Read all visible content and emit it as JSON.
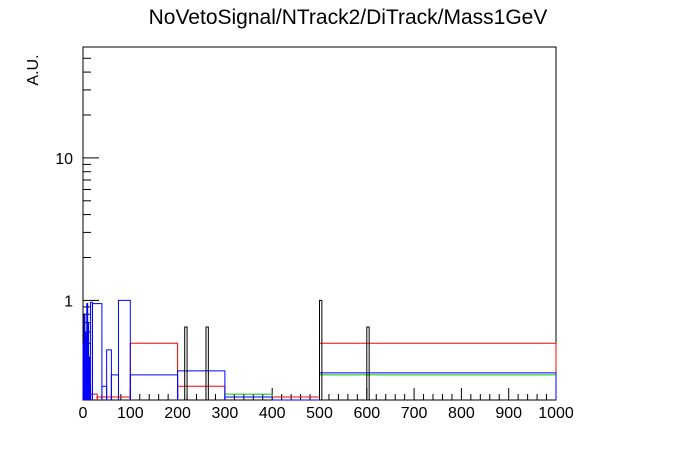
{
  "chart_data": {
    "type": "histogram",
    "title": "NoVetoSignal/NTrack2/DiTrack/Mass1GeV",
    "xlabel": "",
    "ylabel": "A.U.",
    "xlim": [
      0,
      1000
    ],
    "ylim": [
      0.2,
      60
    ],
    "yscale": "log",
    "grid": false,
    "legend": "none",
    "x_ticks": [
      0,
      100,
      200,
      300,
      400,
      500,
      600,
      700,
      800,
      900,
      1000
    ],
    "x_tick_labels": [
      "0",
      "100",
      "200",
      "300",
      "400",
      "500",
      "600",
      "700",
      "800",
      "900",
      "1000"
    ],
    "y_ticks": [
      1,
      10
    ],
    "y_tick_labels": [
      "1",
      "10"
    ],
    "series": [
      {
        "color": "#ff0000",
        "bins": [
          [
            0,
            5,
            0.35
          ],
          [
            5,
            10,
            0.6
          ],
          [
            10,
            20,
            0.22
          ],
          [
            20,
            30,
            0.22
          ],
          [
            30,
            100,
            0.21
          ],
          [
            100,
            200,
            0.5
          ],
          [
            200,
            300,
            0.25
          ],
          [
            300,
            400,
            0.21
          ],
          [
            400,
            500,
            0.21
          ],
          [
            500,
            1000,
            0.5
          ]
        ]
      },
      {
        "color": "#00cc00",
        "bins": [
          [
            300,
            400,
            0.22
          ],
          [
            500,
            1000,
            0.3
          ]
        ]
      },
      {
        "color": "#0000ff",
        "bins": [
          [
            0,
            2,
            0.5
          ],
          [
            2,
            4,
            0.8
          ],
          [
            4,
            6,
            0.35
          ],
          [
            6,
            8,
            0.6
          ],
          [
            8,
            10,
            0.95
          ],
          [
            10,
            12,
            0.7
          ],
          [
            12,
            14,
            0.4
          ],
          [
            14,
            16,
            0.25
          ],
          [
            16,
            20,
            0.97
          ],
          [
            20,
            40,
            0.95
          ],
          [
            40,
            50,
            0.25
          ],
          [
            50,
            60,
            0.45
          ],
          [
            60,
            75,
            0.3
          ],
          [
            75,
            100,
            1.0
          ],
          [
            100,
            200,
            0.3
          ],
          [
            200,
            300,
            0.32
          ],
          [
            300,
            400,
            0.21
          ],
          [
            400,
            500,
            0.2
          ],
          [
            500,
            1000,
            0.31
          ]
        ]
      },
      {
        "color": "#000000",
        "bins": [
          [
            215,
            220,
            0.65
          ],
          [
            260,
            265,
            0.65
          ],
          [
            500,
            505,
            1.0
          ],
          [
            600,
            605,
            0.65
          ]
        ]
      }
    ]
  }
}
